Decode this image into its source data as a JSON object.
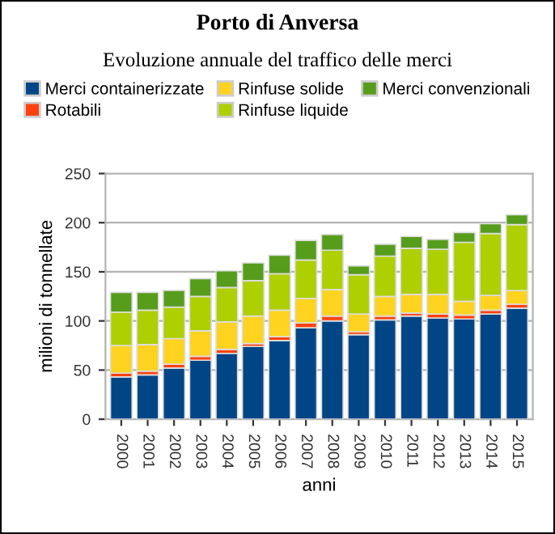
{
  "chart_data": {
    "type": "bar",
    "stacked": true,
    "title": "Porto di Anversa",
    "subtitle": "Evoluzione annuale del traffico delle merci",
    "xlabel": "anni",
    "ylabel": "milioni di tonnellate",
    "categories": [
      "2000",
      "2001",
      "2002",
      "2003",
      "2004",
      "2005",
      "2006",
      "2007",
      "2008",
      "2009",
      "2010",
      "2011",
      "2012",
      "2013",
      "2014",
      "2015"
    ],
    "series": [
      {
        "name": "Merci containerizzate",
        "color": "#004586",
        "values": [
          43,
          45,
          52,
          60,
          67,
          74,
          80,
          93,
          100,
          86,
          101,
          105,
          103,
          102,
          107,
          113
        ]
      },
      {
        "name": "Rotabili",
        "color": "#ff420e",
        "values": [
          4,
          4,
          4,
          4,
          4,
          3,
          4,
          5,
          5,
          3,
          4,
          3,
          4,
          4,
          4,
          4
        ]
      },
      {
        "name": "Rinfuse solide",
        "color": "#ffd320",
        "values": [
          28,
          27,
          26,
          26,
          28,
          28,
          27,
          25,
          27,
          18,
          20,
          19,
          20,
          14,
          15,
          14
        ]
      },
      {
        "name": "Rinfuse liquide",
        "color": "#aecf00",
        "values": [
          34,
          35,
          32,
          35,
          35,
          36,
          37,
          39,
          40,
          40,
          41,
          47,
          46,
          60,
          63,
          67
        ]
      },
      {
        "name": "Merci convenzionali",
        "color": "#579d1c",
        "values": [
          20,
          18,
          17,
          18,
          17,
          18,
          19,
          20,
          16,
          9,
          12,
          12,
          10,
          10,
          10,
          10
        ]
      }
    ],
    "ylim": [
      0,
      250
    ],
    "yticks": [
      0,
      50,
      100,
      150,
      200,
      250
    ],
    "grid": "y",
    "legend": "top"
  }
}
